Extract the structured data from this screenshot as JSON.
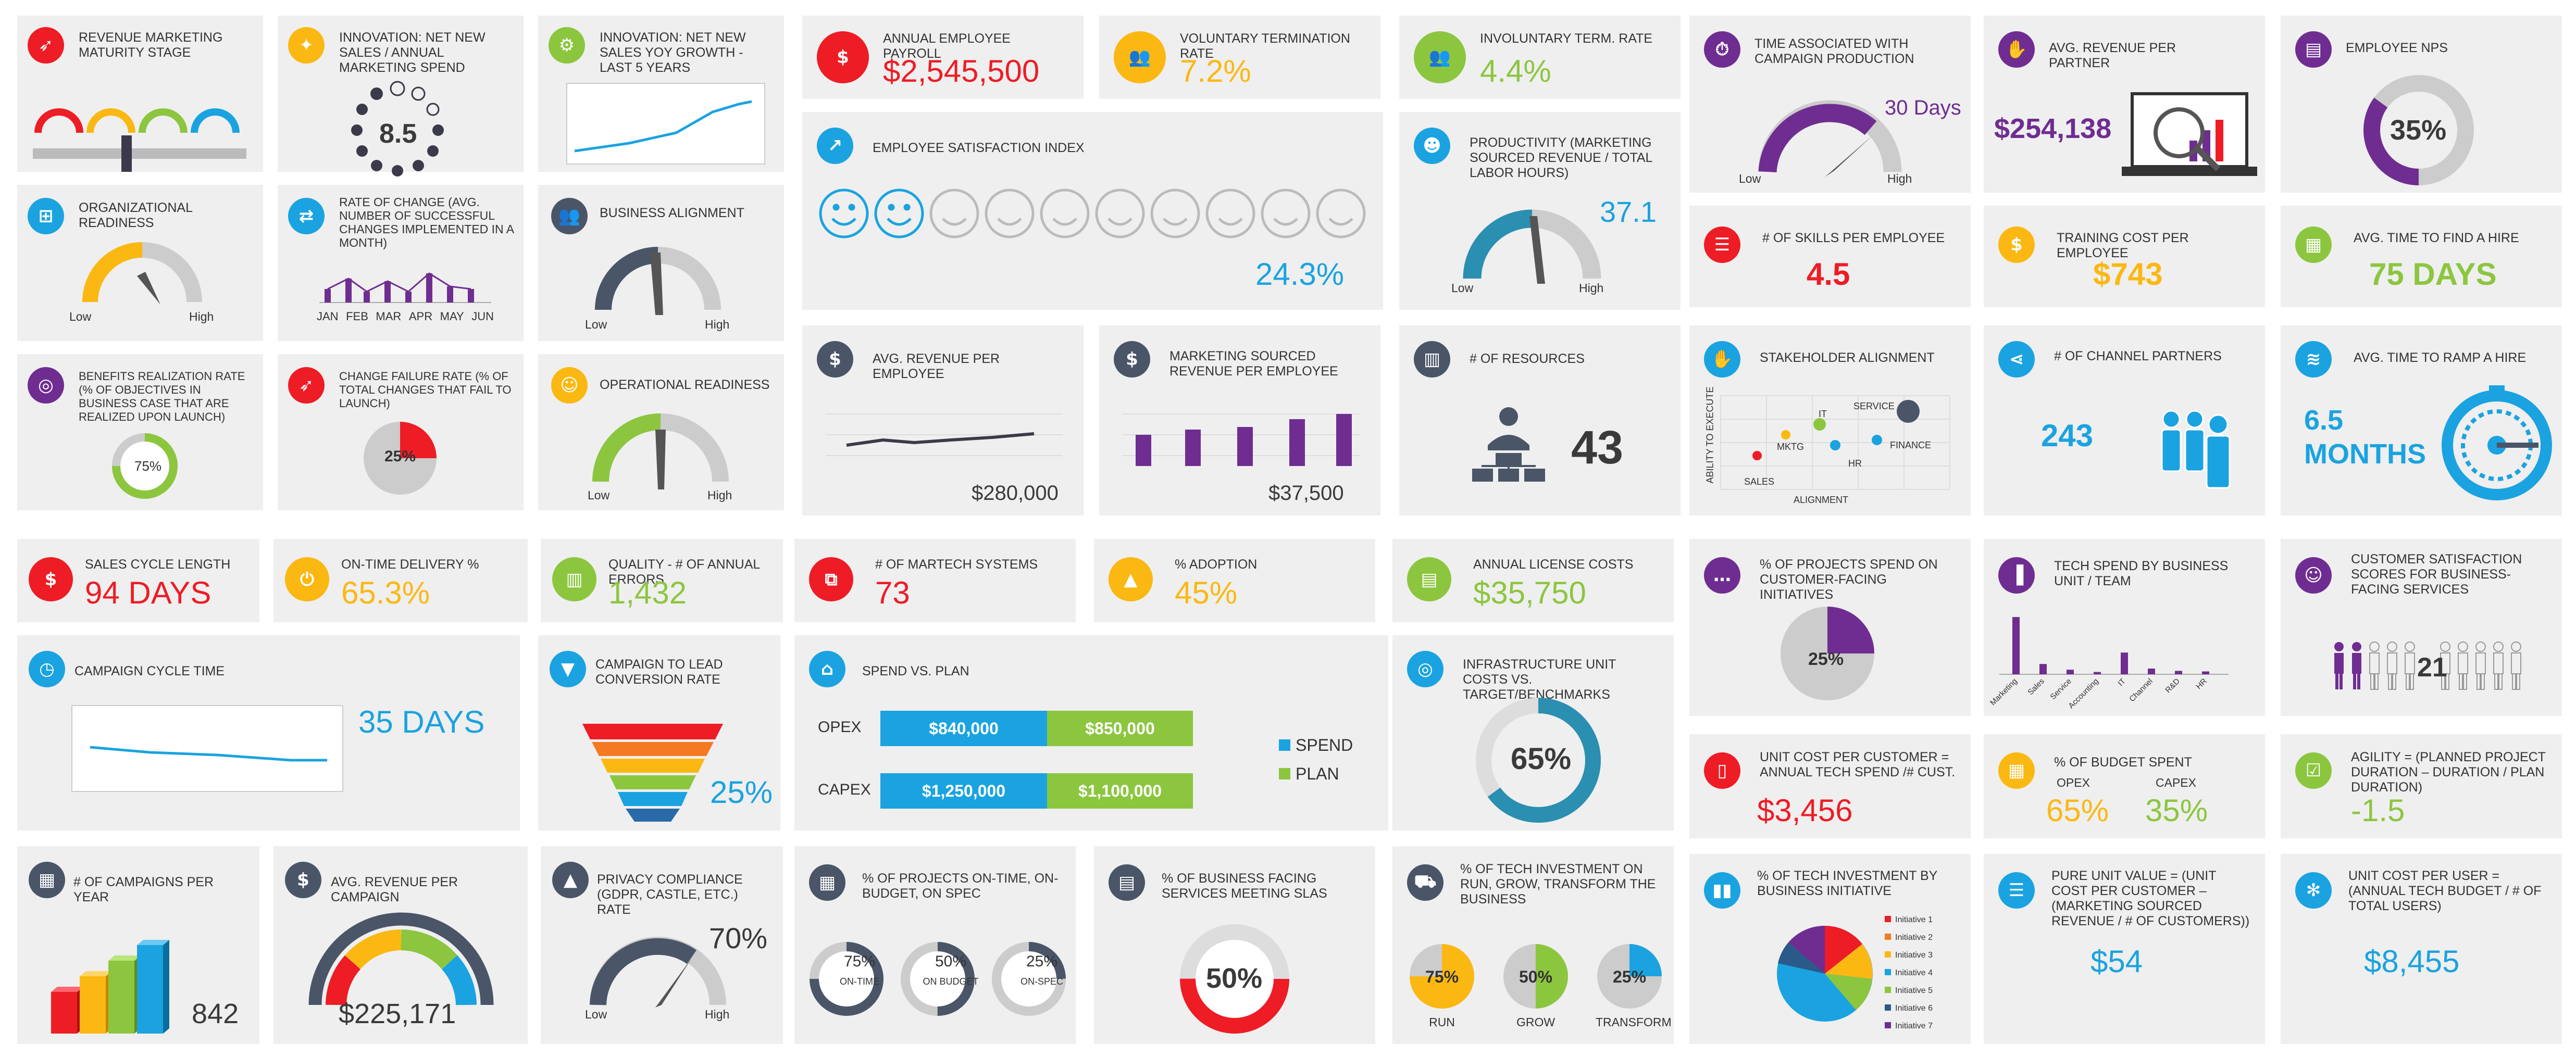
{
  "colors": {
    "red": "#ee1c25",
    "yellow": "#fbb813",
    "green": "#8cc63f",
    "blue": "#1aa3e0",
    "purple": "#6f2d91",
    "dark": "#4a5568",
    "panel": "#efefef"
  },
  "cards": {
    "rev_marketing": {
      "title": "REVENUE MARKETING MATURITY STAGE",
      "icon": "rocket-icon"
    },
    "innovation_ratio": {
      "title": "INNOVATION: NET NEW SALES / ANNUAL MARKETING SPEND",
      "value": "8.5",
      "icon": "lightbulb-icon"
    },
    "innovation_growth": {
      "title": "INNOVATION: NET NEW SALES YOY GROWTH - LAST 5 YEARS",
      "icon": "gear-bulb-icon"
    },
    "payroll": {
      "title": "ANNUAL EMPLOYEE PAYROLL",
      "value": "$2,545,500",
      "icon": "money-icon"
    },
    "vol_term": {
      "title": "VOLUNTARY TERMINATION RATE",
      "value": "7.2%",
      "icon": "team-icon"
    },
    "invol_term": {
      "title": "INVOLUNTARY TERM. RATE",
      "value": "4.4%",
      "icon": "group-icon"
    },
    "time_campaign": {
      "title": "TIME ASSOCIATED WITH CAMPAIGN PRODUCTION",
      "value": "30 Days",
      "low": "Low",
      "high": "High",
      "icon": "stopwatch-icon"
    },
    "rev_partner": {
      "title": "AVG. REVENUE PER PARTNER",
      "value": "$254,138",
      "icon": "handshake-icon"
    },
    "nps": {
      "title": "EMPLOYEE NPS",
      "value": "35%",
      "icon": "id-card-icon"
    },
    "org_ready": {
      "title": "ORGANIZATIONAL READINESS",
      "low": "Low",
      "high": "High",
      "icon": "org-icon"
    },
    "rate_change": {
      "title": "RATE OF CHANGE (AVG. NUMBER OF SUCCESSFUL CHANGES IMPLEMENTED IN A MONTH)",
      "months": [
        "JAN",
        "FEB",
        "MAR",
        "APR",
        "MAY",
        "JUN"
      ],
      "icon": "arrows-icon"
    },
    "biz_align": {
      "title": "BUSINESS ALIGNMENT",
      "low": "Low",
      "high": "High",
      "icon": "people-icon"
    },
    "satisfaction": {
      "title": "EMPLOYEE SATISFACTION INDEX",
      "value": "24.3%",
      "icon": "chart-icon"
    },
    "productivity": {
      "title": "PRODUCTIVITY (MARKETING SOURCED REVENUE / TOTAL LABOR HOURS)",
      "value": "37.1",
      "low": "Low",
      "high": "High",
      "icon": "head-gear-icon"
    },
    "skills": {
      "title": "# OF SKILLS PER EMPLOYEE",
      "value": "4.5",
      "icon": "checklist-icon"
    },
    "training": {
      "title": "TRAINING COST PER EMPLOYEE",
      "value": "$743",
      "icon": "money-hand-icon"
    },
    "time_hire": {
      "title": "AVG. TIME TO FIND A HIRE",
      "value": "75 DAYS",
      "icon": "calendar-icon"
    },
    "benefits": {
      "title": "BENEFITS REALIZATION RATE (% OF OBJECTIVES IN BUSINESS CASE THAT ARE REALIZED UPON LAUNCH)",
      "value": "75%",
      "icon": "target-icon"
    },
    "change_fail": {
      "title": "CHANGE FAILURE RATE (% OF TOTAL CHANGES THAT FAIL TO LAUNCH)",
      "value": "25%",
      "icon": "rocket-fail-icon"
    },
    "op_ready": {
      "title": "OPERATIONAL READINESS",
      "low": "Low",
      "high": "High",
      "icon": "person-icon"
    },
    "rev_employee": {
      "title": "AVG. REVENUE PER EMPLOYEE",
      "value": "$280,000",
      "icon": "coins-icon"
    },
    "mkt_rev_emp": {
      "title": "MARKETING SOURCED REVENUE PER EMPLOYEE",
      "value": "$37,500",
      "icon": "money-person-icon"
    },
    "resources": {
      "title": "# OF RESOURCES",
      "value": "43",
      "icon": "building-icon"
    },
    "stakeholder": {
      "title": "STAKEHOLDER ALIGNMENT",
      "yaxis": "ABILITY TO EXECUTE",
      "xaxis": "ALIGNMENT",
      "points": [
        "SERVICE",
        "IT",
        "MKTG",
        "FINANCE",
        "HR",
        "SALES"
      ],
      "icon": "handshake-icon"
    },
    "channel": {
      "title": "# OF CHANNEL PARTNERS",
      "value": "243",
      "icon": "share-icon"
    },
    "ramp": {
      "title": "AVG. TIME TO RAMP A HIRE",
      "value": "6.5",
      "value2": "MONTHS",
      "icon": "layers-icon"
    },
    "sales_cycle": {
      "title": "SALES CYCLE LENGTH",
      "value": "94 DAYS",
      "icon": "dollar-refresh-icon"
    },
    "ontime": {
      "title": "ON-TIME DELIVERY %",
      "value": "65.3%",
      "icon": "power-icon"
    },
    "quality": {
      "title": "QUALITY - # OF ANNUAL ERRORS",
      "value": "1,432",
      "icon": "columns-icon"
    },
    "martech": {
      "title": "# OF MARTECH SYSTEMS",
      "value": "73",
      "icon": "network-icon"
    },
    "adoption": {
      "title": "% ADOPTION",
      "value": "45%",
      "icon": "growth-icon"
    },
    "license": {
      "title": "ANNUAL LICENSE COSTS",
      "value": "$35,750",
      "icon": "license-icon"
    },
    "customer_proj": {
      "title": "% OF PROJECTS SPEND ON CUSTOMER-FACING INITIATIVES",
      "value": "25%",
      "icon": "chat-icon"
    },
    "tech_spend": {
      "title": "TECH SPEND BY BUSINESS UNIT / TEAM",
      "cats": [
        "Marketing",
        "Sales",
        "Service",
        "Accounting",
        "IT",
        "Channel",
        "R&D",
        "HR"
      ],
      "values": [
        100,
        18,
        8,
        4,
        38,
        10,
        6,
        5
      ],
      "icon": "bar-chart-icon"
    },
    "csat": {
      "title": "CUSTOMER SATISFACTION SCORES FOR BUSINESS-FACING SERVICES",
      "value": "21",
      "icon": "smile-icon"
    },
    "campaign_cycle": {
      "title": "CAMPAIGN CYCLE TIME",
      "value": "35 DAYS",
      "icon": "clock-icon"
    },
    "conversion": {
      "title": "CAMPAIGN TO LEAD CONVERSION RATE",
      "value": "25%",
      "icon": "funnel-icon"
    },
    "spend_plan": {
      "title": "SPEND VS. PLAN",
      "rows": [
        {
          "label": "OPEX",
          "spend": "$840,000",
          "plan": "$850,000"
        },
        {
          "label": "CAPEX",
          "spend": "$1,250,000",
          "plan": "$1,100,000"
        }
      ],
      "legend_spend": "SPEND",
      "legend_plan": "PLAN",
      "icon": "bank-icon"
    },
    "infra": {
      "title": "INFRASTRUCTURE UNIT COSTS VS. TARGET/BENCHMARKS",
      "value": "65%",
      "icon": "target-icon"
    },
    "unit_cost_cust": {
      "title": "UNIT COST PER CUSTOMER = ANNUAL TECH SPEND /# CUST.",
      "value": "$3,456",
      "icon": "phone-icon"
    },
    "budget_spent": {
      "title": "% OF BUDGET SPENT",
      "opex_label": "OPEX",
      "capex_label": "CAPEX",
      "opex": "65%",
      "capex": "35%",
      "icon": "calculator-icon"
    },
    "agility": {
      "title": "AGILITY = (PLANNED PROJECT DURATION – DURATION / PLAN DURATION)",
      "value": "-1.5",
      "icon": "checklist-icon"
    },
    "campaigns": {
      "title": "# OF CAMPAIGNS PER YEAR",
      "value": "842",
      "icon": "calendar-money-icon"
    },
    "rev_campaign": {
      "title": "AVG. REVENUE PER CAMPAIGN",
      "value": "$225,171",
      "icon": "person-money-icon"
    },
    "privacy": {
      "title": "PRIVACY COMPLIANCE (GDPR, CASTLE, ETC.) RATE",
      "value": "70%",
      "low": "Low",
      "high": "High",
      "icon": "shield-icon"
    },
    "projects_ontime": {
      "title": "% OF PROJECTS ON-TIME, ON-BUDGET, ON SPEC",
      "items": [
        {
          "value": "75%",
          "label": "ON-TIME"
        },
        {
          "value": "50%",
          "label": "ON BUDGET"
        },
        {
          "value": "25%",
          "label": "ON-SPEC"
        }
      ],
      "icon": "calendar-icon"
    },
    "slas": {
      "title": "% OF BUSINESS FACING SERVICES MEETING SLAS",
      "value": "50%",
      "icon": "document-icon"
    },
    "tech_invest": {
      "title": "% OF TECH INVESTMENT ON RUN, GROW, TRANSFORM THE BUSINESS",
      "items": [
        {
          "value": "75%",
          "label": "RUN"
        },
        {
          "value": "50%",
          "label": "GROW"
        },
        {
          "value": "25%",
          "label": "TRANSFORM"
        }
      ],
      "icon": "watering-can-icon"
    },
    "tech_initiative": {
      "title": "% OF TECH INVESTMENT BY BUSINESS INITIATIVE",
      "legend": [
        "Initiative 1",
        "Initiative 2",
        "Initiative 3",
        "Initiative 4",
        "Initiative 5",
        "Initiative 6",
        "Initiative 7"
      ],
      "icon": "bottles-icon"
    },
    "pure_unit": {
      "title": "PURE UNIT VALUE = (UNIT COST PER CUSTOMER – (MARKETING SOURCED REVENUE / # OF CUSTOMERS))",
      "value": "$54",
      "icon": "list-icon"
    },
    "unit_user": {
      "title": "UNIT COST PER USER = (ANNUAL TECH BUDGET / # OF TOTAL USERS)",
      "value": "$8,455",
      "icon": "nodes-icon"
    }
  }
}
